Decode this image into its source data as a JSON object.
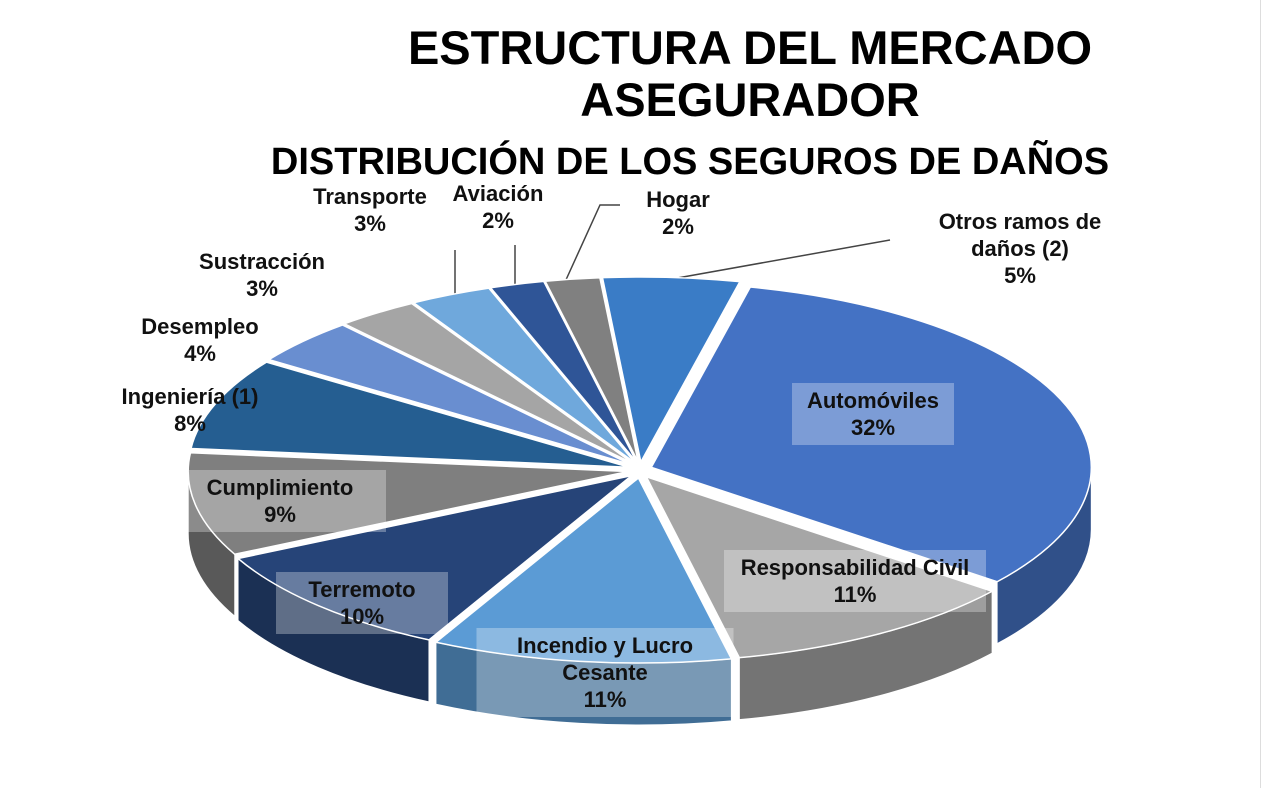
{
  "chart_data": {
    "type": "pie",
    "title": "ESTRUCTURA DEL MERCADO ASEGURADOR",
    "subtitle": "DISTRIBUCIÓN  DE LOS SEGUROS DE DAÑOS",
    "categories": [
      "Otros ramos de daños (2)",
      "Automóviles",
      "Responsabilidad Civil",
      "Incendio y Lucro Cesante",
      "Terremoto",
      "Cumplimiento",
      "Ingeniería (1)",
      "Desempleo",
      "Sustracción",
      "Transporte",
      "Aviación",
      "Hogar"
    ],
    "values": [
      5,
      32,
      11,
      11,
      10,
      9,
      8,
      4,
      3,
      3,
      2,
      2
    ],
    "value_labels": [
      "5%",
      "32%",
      "11%",
      "11%",
      "10%",
      "9%",
      "8%",
      "4%",
      "3%",
      "3%",
      "2%",
      "2%"
    ],
    "colors": [
      "#3a7cc6",
      "#4472c4",
      "#a6a6a6",
      "#5b9bd5",
      "#264478",
      "#7f7f7f",
      "#255e91",
      "#698ed0",
      "#a5a5a5",
      "#6fa8dc",
      "#2f5597",
      "#808080"
    ]
  }
}
